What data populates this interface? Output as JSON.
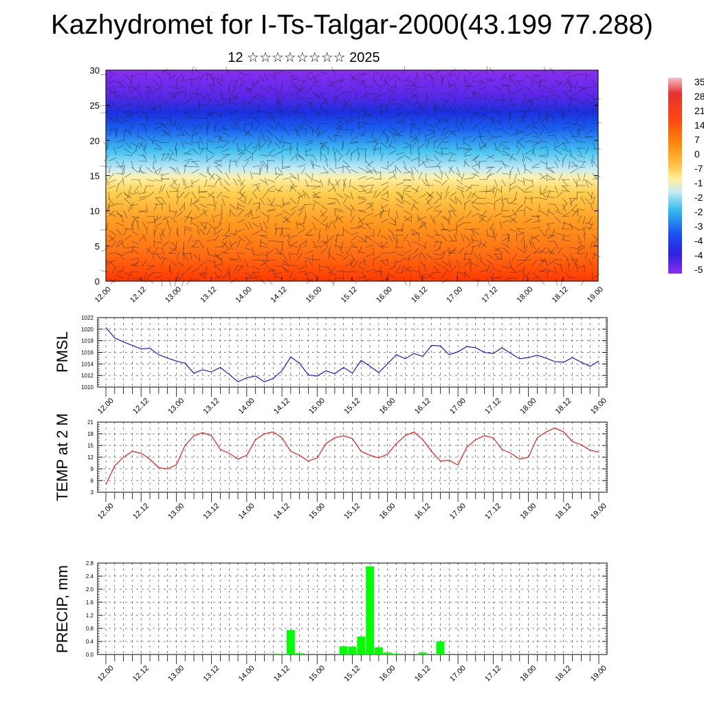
{
  "title": "Kazhydromet for I-Ts-Talgar-2000(43.199 77.288)",
  "subtitle": "12 ☆☆☆☆☆☆☆☆ 2025",
  "chart_data": [
    {
      "type": "heatmap",
      "description_of_field": "vertical cross-section with wind barbs",
      "x_ticks": [
        "12.00",
        "12.12",
        "13.00",
        "13.12",
        "14.00",
        "14.12",
        "15.00",
        "15.12",
        "16.00",
        "16.12",
        "17.00",
        "17.12",
        "18.00",
        "18.12",
        "19.00"
      ],
      "ylim": [
        0,
        30
      ],
      "y_ticks": [
        "0",
        "5",
        "10",
        "15",
        "20",
        "25",
        "30"
      ],
      "colorbar_labels": [
        "35",
        "28",
        "21",
        "14",
        "7",
        "0",
        "-7",
        "-1",
        "-2",
        "-2",
        "-3",
        "-4",
        "-4",
        "-5"
      ],
      "colors": [
        "#f0b0c0",
        "#e02020",
        "#ff5010",
        "#ff9a10",
        "#ffd040",
        "#fff8a0",
        "#c0e8f0",
        "#40c0f0",
        "#1050f0",
        "#6030e8",
        "#8a2ef0"
      ]
    },
    {
      "type": "line",
      "ylabel": "PMSL",
      "ylim": [
        1010,
        1022
      ],
      "y_ticks": [
        "1010",
        "1012",
        "1014",
        "1016",
        "1018",
        "1020",
        "1022"
      ],
      "x_ticks": [
        "12.00",
        "12.12",
        "13.00",
        "13.12",
        "14.00",
        "14.12",
        "15.00",
        "15.12",
        "16.00",
        "16.12",
        "17.00",
        "17.12",
        "18.00",
        "18.12",
        "19.00"
      ],
      "color": "#0000ff",
      "values": [
        1020.3,
        1018.5,
        1017.8,
        1017.2,
        1016.6,
        1016.7,
        1015.6,
        1015.0,
        1014.5,
        1014.1,
        1012.4,
        1013.0,
        1012.6,
        1013.4,
        1012.2,
        1010.9,
        1011.6,
        1011.9,
        1010.9,
        1011.5,
        1012.8,
        1015.2,
        1014.1,
        1012.1,
        1011.9,
        1012.8,
        1012.3,
        1013.4,
        1012.4,
        1014.6,
        1013.6,
        1012.5,
        1014.0,
        1015.6,
        1014.9,
        1015.8,
        1015.3,
        1017.2,
        1017.1,
        1015.6,
        1016.1,
        1017.0,
        1016.8,
        1016.0,
        1015.8,
        1016.8,
        1015.8,
        1014.9,
        1015.1,
        1015.5,
        1015.0,
        1014.4,
        1014.3,
        1015.1,
        1014.3,
        1013.6,
        1014.5
      ]
    },
    {
      "type": "line",
      "ylabel": "TEMP at 2 M",
      "ylim": [
        3,
        21
      ],
      "y_ticks": [
        "3",
        "6",
        "9",
        "12",
        "15",
        "18",
        "21"
      ],
      "x_ticks": [
        "12.00",
        "12.12",
        "13.00",
        "13.12",
        "14.00",
        "14.12",
        "15.00",
        "15.12",
        "16.00",
        "16.12",
        "17.00",
        "17.12",
        "18.00",
        "18.12",
        "19.00"
      ],
      "color": "#ff0000",
      "values": [
        5.0,
        9.8,
        12.0,
        13.5,
        13.0,
        11.5,
        9.3,
        9.0,
        10.0,
        15.0,
        17.5,
        18.3,
        17.5,
        14.0,
        13.0,
        11.5,
        12.5,
        16.5,
        18.0,
        18.5,
        17.0,
        13.5,
        12.5,
        11.0,
        11.8,
        15.5,
        17.0,
        17.5,
        16.8,
        13.5,
        12.5,
        11.8,
        12.8,
        15.5,
        17.5,
        18.5,
        16.5,
        13.5,
        11.0,
        11.2,
        10.0,
        14.5,
        16.5,
        17.5,
        17.0,
        14.0,
        13.0,
        11.5,
        12.0,
        17.0,
        18.5,
        19.5,
        18.5,
        16.0,
        15.2,
        13.8,
        13.3
      ]
    },
    {
      "type": "bar",
      "ylabel": "PRECIP, mm",
      "ylim": [
        0,
        2.8
      ],
      "y_ticks": [
        "0.0",
        "0.4",
        "0.8",
        "1.2",
        "1.6",
        "2.0",
        "2.4",
        "2.8"
      ],
      "x_ticks": [
        "12.00",
        "12.12",
        "13.00",
        "13.12",
        "14.00",
        "14.12",
        "15.00",
        "15.12",
        "16.00",
        "16.12",
        "17.00",
        "17.12",
        "18.00",
        "18.12",
        "19.00"
      ],
      "color": "#00ff00",
      "bars": [
        {
          "index": 19,
          "value": 0.02
        },
        {
          "index": 20,
          "value": 0.02
        },
        {
          "index": 21,
          "value": 0.75
        },
        {
          "index": 22,
          "value": 0.04
        },
        {
          "index": 27,
          "value": 0.25
        },
        {
          "index": 28,
          "value": 0.24
        },
        {
          "index": 29,
          "value": 0.55
        },
        {
          "index": 30,
          "value": 2.7
        },
        {
          "index": 31,
          "value": 0.22
        },
        {
          "index": 32,
          "value": 0.06
        },
        {
          "index": 33,
          "value": 0.03
        },
        {
          "index": 36,
          "value": 0.06
        },
        {
          "index": 38,
          "value": 0.4
        }
      ]
    }
  ]
}
